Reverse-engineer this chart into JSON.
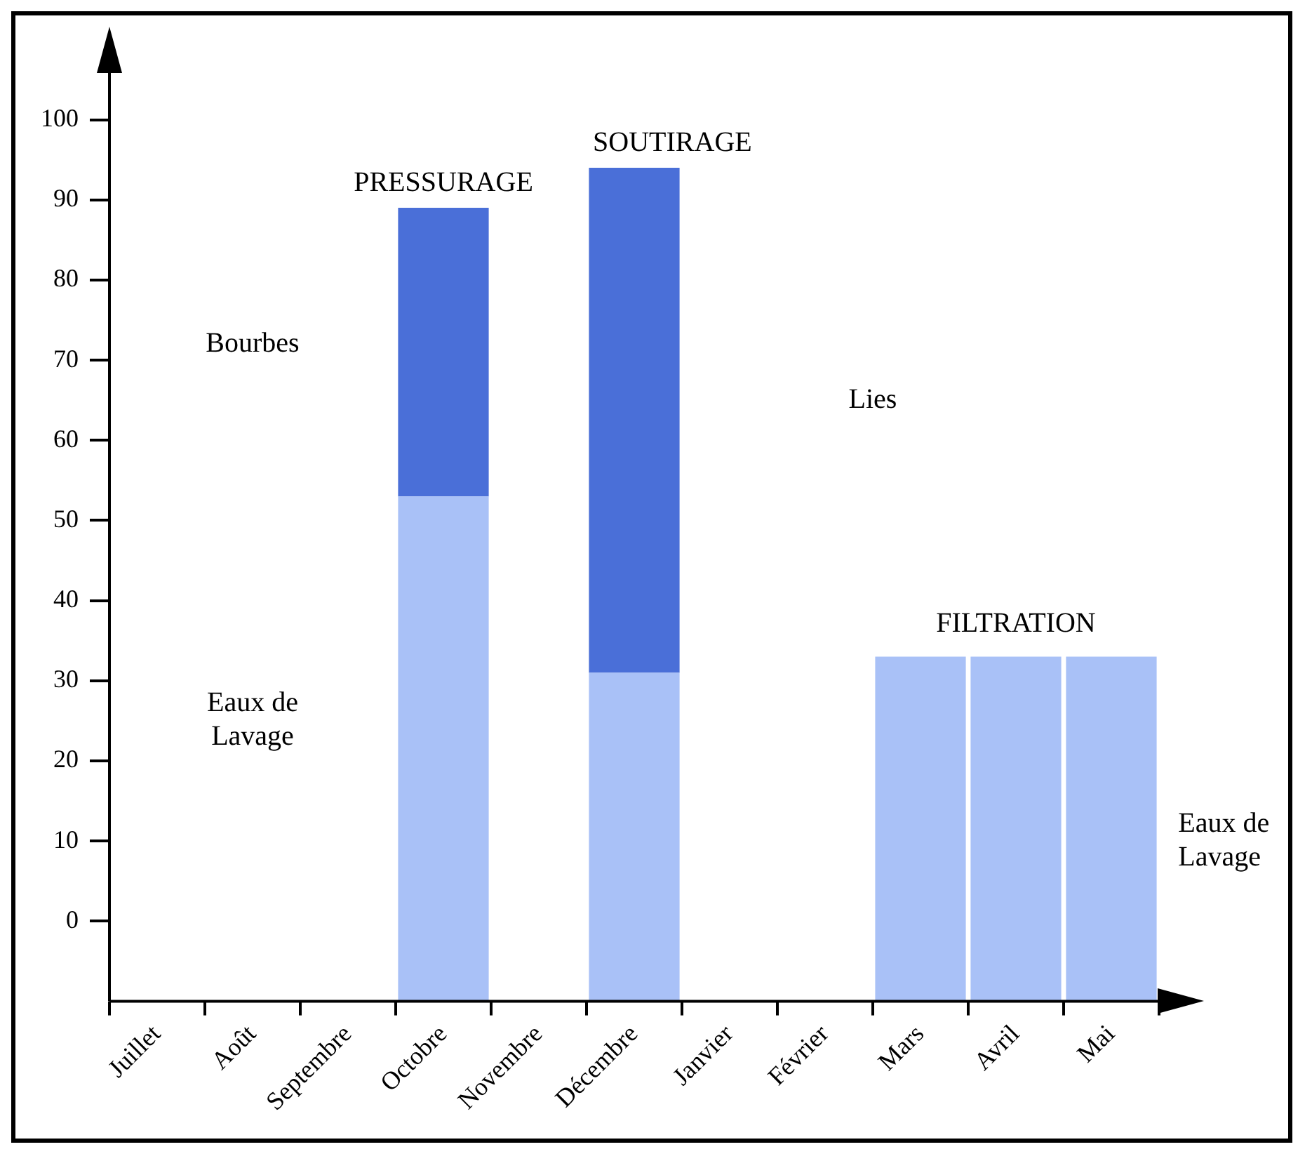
{
  "chart_data": {
    "type": "bar",
    "categories": [
      "Juillet",
      "Août",
      "Septembre",
      "Octobre",
      "Novembre",
      "Décembre",
      "Janvier",
      "Février",
      "Mars",
      "Avril",
      "Mai"
    ],
    "series": [
      {
        "color": "#a9c1f7",
        "base": [
          null,
          null,
          null,
          -10,
          null,
          -10,
          null,
          null,
          -10,
          -10,
          -10
        ],
        "values": [
          null,
          null,
          null,
          63,
          null,
          41,
          null,
          null,
          43,
          43,
          43
        ]
      },
      {
        "color": "#4a6fd8",
        "base": [
          null,
          null,
          null,
          53,
          null,
          31,
          null,
          null,
          null,
          null,
          null
        ],
        "values": [
          null,
          null,
          null,
          36,
          null,
          63,
          null,
          null,
          null,
          null,
          null
        ]
      }
    ],
    "ylim": [
      -10,
      106
    ],
    "yticks": [
      0,
      10,
      20,
      30,
      40,
      50,
      60,
      70,
      80,
      90,
      100
    ],
    "grid": false,
    "legend": false,
    "annotations": [
      "PRESSURAGE",
      "SOUTIRAGE",
      "FILTRATION",
      "Bourbes",
      "Eaux de Lavage",
      "Lies",
      "Eaux de Lavage"
    ]
  }
}
